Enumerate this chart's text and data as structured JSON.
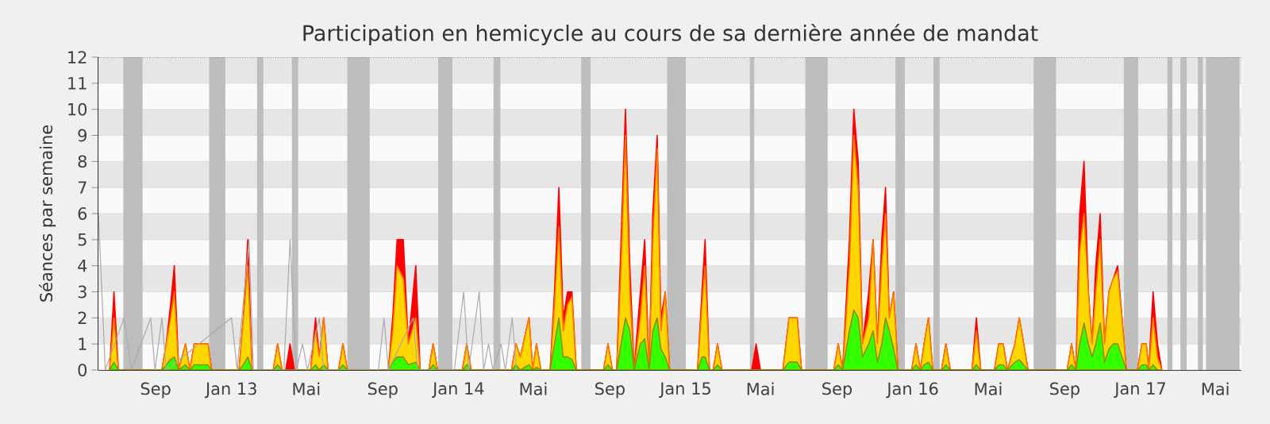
{
  "chart_data": {
    "type": "area",
    "title": "Participation en hemicycle au cours de sa dernière année de mandat",
    "ylabel": "Séances par semaine",
    "xlim": [
      "2012-06-01",
      "2017-06-12"
    ],
    "ylim": [
      0,
      12
    ],
    "yticks": [
      0,
      1,
      2,
      3,
      4,
      5,
      6,
      7,
      8,
      9,
      10,
      11,
      12
    ],
    "xticks": [
      {
        "value": "2012-09-01",
        "label": "Sep"
      },
      {
        "value": "2013-01-01",
        "label": "Jan 13"
      },
      {
        "value": "2013-05-01",
        "label": "Mai"
      },
      {
        "value": "2013-09-01",
        "label": "Sep"
      },
      {
        "value": "2014-01-01",
        "label": "Jan 14"
      },
      {
        "value": "2014-05-01",
        "label": "Mai"
      },
      {
        "value": "2014-09-01",
        "label": "Sep"
      },
      {
        "value": "2015-01-01",
        "label": "Jan 15"
      },
      {
        "value": "2015-05-01",
        "label": "Mai"
      },
      {
        "value": "2015-09-01",
        "label": "Sep"
      },
      {
        "value": "2016-01-01",
        "label": "Jan 16"
      },
      {
        "value": "2016-05-01",
        "label": "Mai"
      },
      {
        "value": "2016-09-01",
        "label": "Sep"
      },
      {
        "value": "2017-01-01",
        "label": "Jan 17"
      },
      {
        "value": "2017-05-01",
        "label": "Mai"
      }
    ],
    "grid": "y",
    "bands": [
      {
        "axis": "x",
        "from": "2012-07-11",
        "to": "2012-08-11"
      },
      {
        "axis": "x",
        "from": "2012-11-26",
        "to": "2012-12-22"
      },
      {
        "axis": "x",
        "from": "2013-02-11",
        "to": "2013-02-21"
      },
      {
        "axis": "x",
        "from": "2013-04-08",
        "to": "2013-04-18"
      },
      {
        "axis": "x",
        "from": "2013-07-06",
        "to": "2013-08-11"
      },
      {
        "axis": "x",
        "from": "2013-11-29",
        "to": "2013-12-22"
      },
      {
        "axis": "x",
        "from": "2014-02-26",
        "to": "2014-03-09"
      },
      {
        "axis": "x",
        "from": "2014-07-17",
        "to": "2014-08-01"
      },
      {
        "axis": "x",
        "from": "2014-12-02",
        "to": "2015-01-01"
      },
      {
        "axis": "x",
        "from": "2015-04-14",
        "to": "2015-04-21"
      },
      {
        "axis": "x",
        "from": "2015-07-12",
        "to": "2015-08-17"
      },
      {
        "axis": "x",
        "from": "2015-12-04",
        "to": "2015-12-19"
      },
      {
        "axis": "x",
        "from": "2016-02-03",
        "to": "2016-02-13"
      },
      {
        "axis": "x",
        "from": "2016-07-13",
        "to": "2016-08-18"
      },
      {
        "axis": "x",
        "from": "2016-12-05",
        "to": "2016-12-28"
      },
      {
        "axis": "x",
        "from": "2017-02-13",
        "to": "2017-02-21"
      },
      {
        "axis": "x",
        "from": "2017-03-06",
        "to": "2017-03-16"
      },
      {
        "axis": "x",
        "from": "2017-04-03",
        "to": "2017-04-11"
      },
      {
        "axis": "x",
        "from": "2017-04-16",
        "to": "2017-06-09"
      }
    ],
    "x": [
      "2012-06-19",
      "2012-06-26",
      "2012-07-03",
      "2012-09-11",
      "2012-09-18",
      "2012-09-25",
      "2012-10-01",
      "2012-10-08",
      "2012-10-19",
      "2012-10-26",
      "2012-11-02",
      "2012-11-24",
      "2012-11-30",
      "2013-01-13",
      "2013-01-20",
      "2013-01-27",
      "2013-02-03",
      "2013-03-09",
      "2013-03-16",
      "2013-03-23",
      "2013-03-29",
      "2013-04-05",
      "2013-04-12",
      "2013-05-08",
      "2013-05-16",
      "2013-05-22",
      "2013-05-29",
      "2013-06-05",
      "2013-06-22",
      "2013-06-29",
      "2013-07-06",
      "2013-09-10",
      "2013-09-17",
      "2013-09-24",
      "2013-10-04",
      "2013-10-12",
      "2013-10-24",
      "2013-10-31",
      "2013-11-14",
      "2013-11-21",
      "2013-11-28",
      "2014-01-07",
      "2014-01-14",
      "2014-01-21",
      "2014-03-27",
      "2014-04-03",
      "2014-04-10",
      "2014-04-24",
      "2014-04-30",
      "2014-05-06",
      "2014-05-13",
      "2014-05-28",
      "2014-06-04",
      "2014-06-11",
      "2014-06-18",
      "2014-06-25",
      "2014-07-02",
      "2014-07-09",
      "2014-08-22",
      "2014-08-29",
      "2014-09-05",
      "2014-09-12",
      "2014-09-19",
      "2014-09-26",
      "2014-10-03",
      "2014-10-10",
      "2014-10-20",
      "2014-10-27",
      "2014-11-03",
      "2014-11-09",
      "2014-11-16",
      "2014-11-22",
      "2014-11-29",
      "2014-12-06",
      "2015-01-20",
      "2015-01-27",
      "2015-02-01",
      "2015-02-08",
      "2015-02-14",
      "2015-02-21",
      "2015-02-28",
      "2015-04-17",
      "2015-04-24",
      "2015-05-01",
      "2015-06-06",
      "2015-06-16",
      "2015-06-29",
      "2015-07-06",
      "2015-08-27",
      "2015-09-03",
      "2015-09-10",
      "2015-09-21",
      "2015-09-28",
      "2015-10-05",
      "2015-10-12",
      "2015-10-22",
      "2015-10-29",
      "2015-11-05",
      "2015-11-12",
      "2015-11-18",
      "2015-11-24",
      "2015-12-01",
      "2015-12-08",
      "2015-12-30",
      "2016-01-06",
      "2016-01-13",
      "2016-01-19",
      "2016-01-26",
      "2016-02-02",
      "2016-02-16",
      "2016-02-23",
      "2016-03-01",
      "2016-04-05",
      "2016-04-12",
      "2016-04-19",
      "2016-05-11",
      "2016-05-18",
      "2016-05-25",
      "2016-06-01",
      "2016-06-13",
      "2016-06-20",
      "2016-06-27",
      "2016-07-04",
      "2016-09-05",
      "2016-09-12",
      "2016-09-19",
      "2016-09-25",
      "2016-10-02",
      "2016-10-09",
      "2016-10-15",
      "2016-10-21",
      "2016-10-28",
      "2016-11-04",
      "2016-11-11",
      "2016-11-18",
      "2016-11-25",
      "2016-12-02",
      "2016-12-09",
      "2016-12-27",
      "2017-01-03",
      "2017-01-10",
      "2017-01-14",
      "2017-01-21",
      "2017-01-28",
      "2017-02-04"
    ],
    "series": [
      {
        "type": "line",
        "color": "#aaaaaa",
        "x": [
          "2012-06-01",
          "2012-06-12",
          "2012-07-12",
          "2012-07-24",
          "2012-08-24",
          "2012-08-31",
          "2012-09-11",
          "2012-09-18",
          "2013-01-01",
          "2013-01-10",
          "2013-01-29",
          "2013-02-05",
          "2013-03-26",
          "2013-04-05",
          "2013-04-15",
          "2013-04-25",
          "2013-05-03",
          "2013-05-22",
          "2013-05-29",
          "2013-08-25",
          "2013-09-03",
          "2013-09-10",
          "2013-10-20",
          "2013-10-27",
          "2013-12-25",
          "2014-01-09",
          "2014-01-17",
          "2014-02-03",
          "2014-02-10",
          "2014-02-18",
          "2014-02-25",
          "2014-03-10",
          "2014-03-17",
          "2014-03-28",
          "2014-04-04"
        ],
        "values": [
          6,
          0,
          2,
          0,
          2,
          0,
          2,
          0,
          2,
          0,
          5,
          0,
          0,
          5,
          0,
          1,
          0,
          2,
          0,
          0,
          2,
          0,
          2,
          0,
          0,
          3,
          0,
          3,
          0,
          1,
          0,
          1,
          0,
          2,
          0
        ]
      },
      {
        "color": "#ff0000",
        "values": [
          0,
          3,
          0,
          0,
          1,
          2.5,
          4,
          0,
          1,
          0,
          1,
          1,
          0,
          0,
          2,
          5,
          0,
          0,
          1,
          0,
          0,
          1,
          0,
          0,
          2,
          0.5,
          2,
          0,
          0,
          1,
          0,
          0,
          2,
          5,
          5,
          1,
          4,
          0,
          0,
          1,
          0,
          0,
          1,
          0,
          0,
          1,
          0.5,
          2,
          0,
          1,
          0,
          0,
          3,
          7,
          2,
          3,
          3,
          0,
          0,
          1,
          0,
          0,
          5,
          10,
          4,
          0,
          3,
          5,
          0,
          6,
          9,
          2,
          3,
          0,
          0,
          3,
          5,
          0,
          0,
          1,
          0,
          0,
          1,
          0,
          0,
          2,
          2,
          0,
          0,
          1,
          0,
          5,
          10,
          8,
          1,
          3,
          5,
          1,
          5,
          7,
          2,
          3,
          0,
          0,
          1,
          0,
          1,
          2,
          0,
          0,
          1,
          0,
          0,
          2,
          0,
          0,
          1,
          1,
          0,
          1,
          2,
          1,
          0,
          0,
          1,
          0,
          6,
          8,
          3,
          1,
          4,
          6,
          1,
          3,
          3.5,
          4,
          2,
          0,
          0,
          1,
          1,
          0,
          3,
          1,
          0
        ]
      },
      {
        "color": "#ffd700",
        "values": [
          0,
          2,
          0,
          0,
          1,
          2,
          3,
          0,
          1,
          0,
          1,
          1,
          0,
          0,
          2,
          4,
          0,
          0,
          1,
          0,
          0,
          0,
          0,
          0,
          1.5,
          0.5,
          2,
          0,
          0,
          1,
          0,
          0,
          1.5,
          4,
          3.5,
          1,
          2,
          0,
          0,
          1,
          0,
          0,
          1,
          0,
          0,
          1,
          0.5,
          2,
          0,
          1,
          0,
          0,
          2.5,
          5.5,
          1.5,
          2.5,
          2.8,
          0,
          0,
          1,
          0,
          0,
          4,
          9,
          3,
          0,
          2,
          4,
          0,
          5,
          8.5,
          1.5,
          3,
          0,
          0,
          2.5,
          4,
          0,
          0,
          1,
          0,
          0,
          0,
          0,
          0,
          2,
          2,
          0,
          0,
          1,
          0,
          4,
          9,
          7,
          1,
          2,
          5,
          1,
          4,
          6,
          2,
          3,
          0,
          0,
          1,
          0,
          1,
          2,
          0,
          0,
          1,
          0,
          0,
          1.5,
          0,
          0,
          1,
          1,
          0,
          1,
          2,
          1,
          0,
          0,
          1,
          0,
          4.5,
          6,
          3,
          1,
          3,
          5,
          1,
          3,
          3.5,
          3.8,
          2,
          0,
          0,
          1,
          1,
          0,
          2,
          0.5,
          0
        ]
      },
      {
        "color": "#33ff00",
        "values": [
          0,
          0.3,
          0,
          0,
          0.2,
          0.4,
          0.5,
          0,
          0.2,
          0,
          0.2,
          0.2,
          0,
          0,
          0.2,
          0.5,
          0,
          0,
          0.2,
          0,
          0,
          0,
          0,
          0,
          0.2,
          0,
          0.2,
          0,
          0,
          0.2,
          0,
          0,
          0.3,
          0.5,
          0.5,
          0.2,
          0.3,
          0,
          0,
          0.2,
          0,
          0,
          0.2,
          0,
          0,
          0.2,
          0,
          0.2,
          0,
          0.1,
          0,
          0,
          1,
          2,
          0.5,
          0.5,
          0.4,
          0,
          0,
          0.2,
          0,
          0,
          1,
          2,
          1.5,
          0,
          1,
          1.2,
          0,
          1.5,
          2,
          0.8,
          0.5,
          0,
          0,
          0.5,
          0.5,
          0,
          0,
          0.2,
          0,
          0,
          0,
          0,
          0,
          0.3,
          0.3,
          0,
          0,
          0.2,
          0,
          1.5,
          2.3,
          2,
          0.5,
          1,
          1.5,
          0.3,
          1,
          2,
          1.5,
          0.8,
          0,
          0,
          0.2,
          0,
          0.2,
          0.3,
          0,
          0,
          0.2,
          0,
          0,
          0.2,
          0,
          0,
          0.2,
          0.2,
          0,
          0.3,
          0.4,
          0.2,
          0,
          0,
          0.2,
          0,
          1,
          1.8,
          1,
          0.5,
          1,
          1.8,
          0.3,
          0.8,
          1,
          1,
          0.5,
          0,
          0,
          0.2,
          0.2,
          0,
          0.2,
          0,
          0
        ]
      }
    ]
  }
}
